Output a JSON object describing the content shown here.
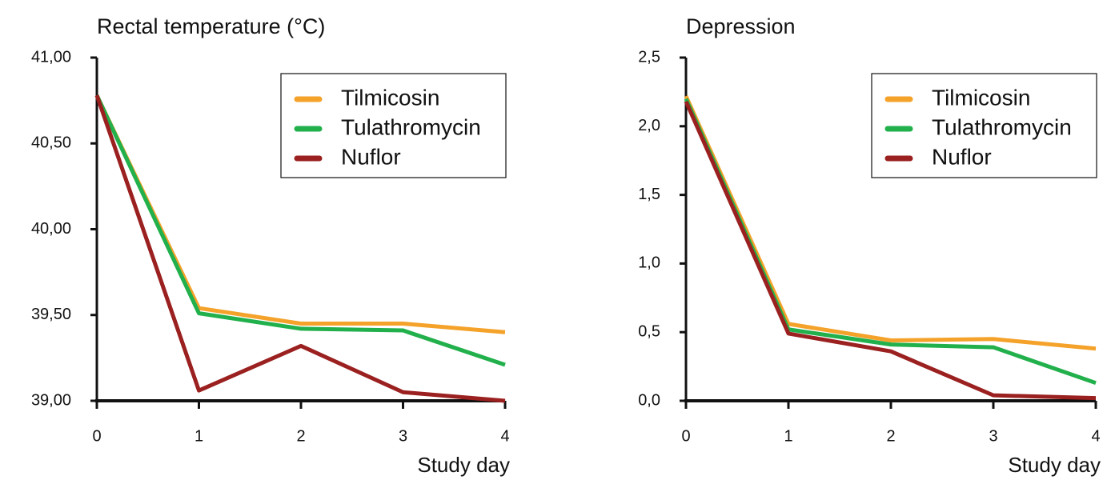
{
  "chart_data": [
    {
      "type": "line",
      "title": "Rectal temperature (°C)",
      "x_label": "Study day",
      "x": [
        0,
        1,
        2,
        3,
        4
      ],
      "xlim": [
        0,
        4
      ],
      "xticks": [
        0,
        1,
        2,
        3,
        4
      ],
      "ylim": [
        39,
        41
      ],
      "yticks": [
        {
          "value": 39,
          "label": "39,00"
        },
        {
          "value": 39.5,
          "label": "39,50"
        },
        {
          "value": 40,
          "label": "40,00"
        },
        {
          "value": 40.5,
          "label": "40,50"
        },
        {
          "value": 41,
          "label": "41,00"
        }
      ],
      "legend": "upper right",
      "series": [
        {
          "name": "Tilmicosin",
          "color": "#f4a22a",
          "values": [
            40.78,
            39.54,
            39.45,
            39.45,
            39.4
          ]
        },
        {
          "name": "Tulathromycin",
          "color": "#21b04b",
          "values": [
            40.78,
            39.51,
            39.42,
            39.41,
            39.21
          ]
        },
        {
          "name": "Nuflor",
          "color": "#9b2020",
          "values": [
            40.78,
            39.06,
            39.32,
            39.05,
            39.0
          ]
        }
      ]
    },
    {
      "type": "line",
      "title": "Depression",
      "x_label": "Study day",
      "x": [
        0,
        1,
        2,
        3,
        4
      ],
      "xlim": [
        0,
        4
      ],
      "xticks": [
        0,
        1,
        2,
        3,
        4
      ],
      "ylim": [
        0,
        2.5
      ],
      "yticks": [
        {
          "value": 0,
          "label": "0,0"
        },
        {
          "value": 0.5,
          "label": "0,5"
        },
        {
          "value": 1,
          "label": "1,0"
        },
        {
          "value": 1.5,
          "label": "1,5"
        },
        {
          "value": 2,
          "label": "2,0"
        },
        {
          "value": 2.5,
          "label": "2,5"
        }
      ],
      "legend": "upper right",
      "series": [
        {
          "name": "Tilmicosin",
          "color": "#f4a22a",
          "values": [
            2.22,
            0.56,
            0.44,
            0.45,
            0.38
          ]
        },
        {
          "name": "Tulathromycin",
          "color": "#21b04b",
          "values": [
            2.2,
            0.52,
            0.41,
            0.39,
            0.13
          ]
        },
        {
          "name": "Nuflor",
          "color": "#9b2020",
          "values": [
            2.18,
            0.49,
            0.36,
            0.04,
            0.02
          ]
        }
      ]
    }
  ]
}
